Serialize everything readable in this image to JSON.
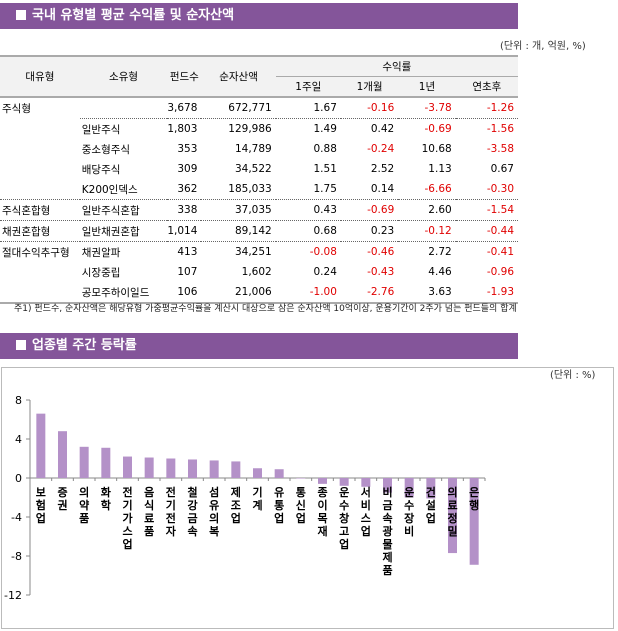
{
  "table_section": {
    "title": "국내 유형별 평균 수익률 및 순자산액",
    "unit": "(단위 : 개, 억원, %)",
    "headers": {
      "major": "대유형",
      "minor": "소유형",
      "funds": "펀드수",
      "assets": "순자산액",
      "returns": "수익률",
      "w1": "1주일",
      "m1": "1개월",
      "y1": "1년",
      "ytd": "연초후"
    },
    "rows": [
      {
        "major": "주식형",
        "minor": "",
        "funds": "3,678",
        "assets": "672,771",
        "w1": "1.67",
        "m1": "-0.16",
        "y1": "-3.78",
        "ytd": "-1.26"
      },
      {
        "major": "",
        "minor": "일반주식",
        "funds": "1,803",
        "assets": "129,986",
        "w1": "1.49",
        "m1": "0.42",
        "y1": "-0.69",
        "ytd": "-1.56"
      },
      {
        "major": "",
        "minor": "중소형주식",
        "funds": "353",
        "assets": "14,789",
        "w1": "0.88",
        "m1": "-0.24",
        "y1": "10.68",
        "ytd": "-3.58"
      },
      {
        "major": "",
        "minor": "배당주식",
        "funds": "309",
        "assets": "34,522",
        "w1": "1.51",
        "m1": "2.52",
        "y1": "1.13",
        "ytd": "0.67"
      },
      {
        "major": "",
        "minor": "K200인덱스",
        "funds": "362",
        "assets": "185,033",
        "w1": "1.75",
        "m1": "0.14",
        "y1": "-6.66",
        "ytd": "-0.30"
      },
      {
        "major": "주식혼합형",
        "minor": "일반주식혼합",
        "funds": "338",
        "assets": "37,035",
        "w1": "0.43",
        "m1": "-0.69",
        "y1": "2.60",
        "ytd": "-1.54"
      },
      {
        "major": "채권혼합형",
        "minor": "일반채권혼합",
        "funds": "1,014",
        "assets": "89,142",
        "w1": "0.68",
        "m1": "0.23",
        "y1": "-0.12",
        "ytd": "-0.44"
      },
      {
        "major": "절대수익추구형",
        "minor": "채권알파",
        "funds": "413",
        "assets": "34,251",
        "w1": "-0.08",
        "m1": "-0.46",
        "y1": "2.72",
        "ytd": "-0.41"
      },
      {
        "major": "",
        "minor": "시장중립",
        "funds": "107",
        "assets": "1,602",
        "w1": "0.24",
        "m1": "-0.43",
        "y1": "4.46",
        "ytd": "-0.96"
      },
      {
        "major": "",
        "minor": "공모주하이일드",
        "funds": "106",
        "assets": "21,006",
        "w1": "-1.00",
        "m1": "-2.76",
        "y1": "3.63",
        "ytd": "-1.93"
      }
    ],
    "note": "주1) 펀드수, 순자산액은 해당유형 가중평균수익률을 계산시 대상으로 삼은 순자산액 10억이상, 운용기간이 2주가 넘는 펀드들의 합계"
  },
  "chart_section": {
    "title": "업종별 주간 등락률",
    "unit": "(단위 : %)"
  },
  "colors": {
    "header": "#84559a",
    "bar": "#b491c8",
    "negative": "#e00000"
  },
  "chart_data": {
    "type": "bar",
    "ylim": [
      -12,
      8
    ],
    "yticks": [
      "8",
      "4",
      "0",
      "-4",
      "-8",
      "-12"
    ],
    "grid": false,
    "categories": [
      "보험업",
      "증권",
      "의약품",
      "화학",
      "전기가스업",
      "음식료품",
      "전기전자",
      "철강금속",
      "섬유의복",
      "제조업",
      "기계",
      "유통업",
      "통신업",
      "종이목재",
      "운수창고업",
      "서비스업",
      "비금속광물제품",
      "운수장비",
      "건설업",
      "의료정밀",
      "은행"
    ],
    "values": [
      6.6,
      4.8,
      3.2,
      3.1,
      2.2,
      2.1,
      2.0,
      1.9,
      1.8,
      1.7,
      1.0,
      0.9,
      0.0,
      -0.6,
      -0.8,
      -0.9,
      -1.5,
      -2.0,
      -2.1,
      -7.7,
      -8.9
    ]
  }
}
